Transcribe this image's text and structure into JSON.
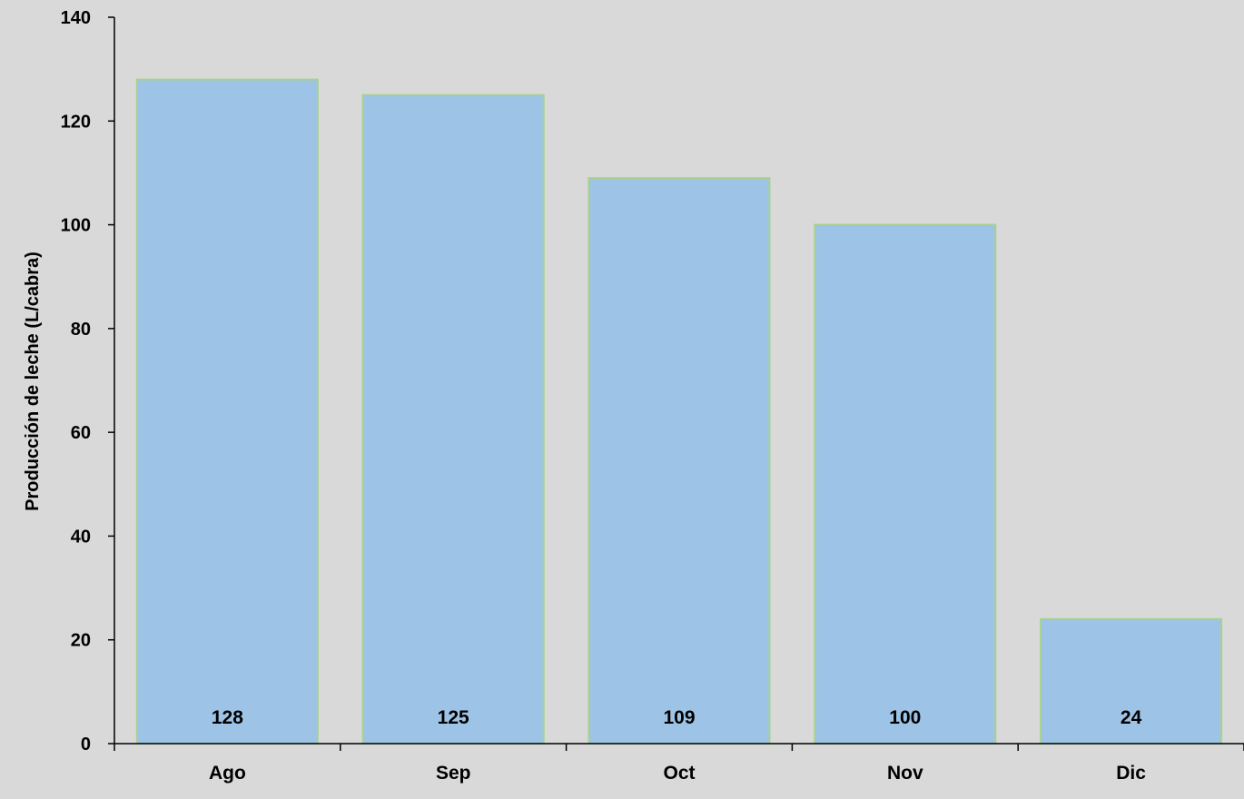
{
  "chart_data": {
    "type": "bar",
    "categories": [
      "Ago",
      "Sep",
      "Oct",
      "Nov",
      "Dic"
    ],
    "values": [
      128,
      125,
      109,
      100,
      24
    ],
    "data_labels": [
      "128",
      "125",
      "109",
      "100",
      "24"
    ],
    "title": "",
    "xlabel": "",
    "ylabel": "Producción de leche (L/cabra)",
    "ylim": [
      0,
      140
    ],
    "yticks": [
      0,
      20,
      40,
      60,
      80,
      100,
      120,
      140
    ],
    "ytick_labels": [
      "0",
      "20",
      "40",
      "60",
      "80",
      "100",
      "120",
      "140"
    ],
    "grid": false,
    "legend": "none",
    "colors": {
      "background": "#d9d9d9",
      "bar_fill": "#9dc3e6",
      "bar_border": "#a9d18e",
      "axis": "#000000",
      "text": "#000000"
    }
  }
}
